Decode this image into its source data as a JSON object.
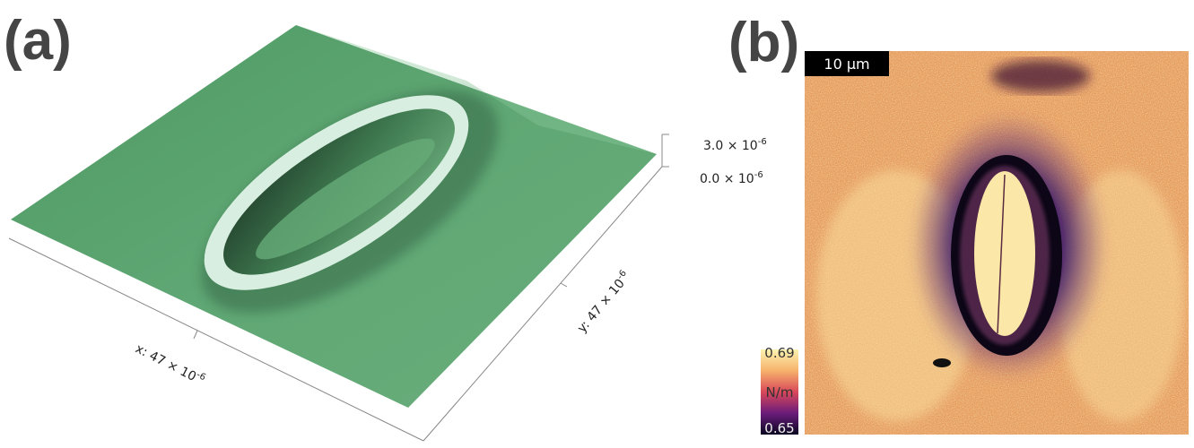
{
  "panels": {
    "a": {
      "label": "(a)",
      "z_ticks": [
        {
          "base": "3.0 × 10",
          "exponent": "-6"
        },
        {
          "base": "0.0 × 10",
          "exponent": "-6"
        }
      ],
      "x_axis": {
        "base": "x: 47 × 10",
        "exponent": "-6"
      },
      "y_axis": {
        "base": "y: 47 × 10",
        "exponent": "-6"
      }
    },
    "b": {
      "label": "(b)",
      "scale_bar": "10 µm",
      "colorbar": {
        "max": "0.69",
        "unit": "N/m",
        "min": "0.65"
      }
    }
  }
}
